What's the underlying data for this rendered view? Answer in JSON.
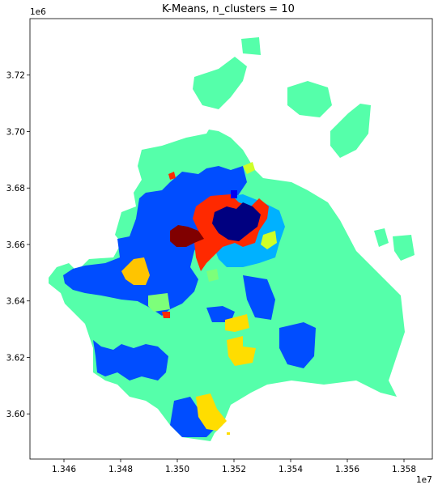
{
  "chart_data": {
    "type": "map",
    "title": "K-Means, n_clusters = 10",
    "x_offset_label": "1e7",
    "y_offset_label": "1e6",
    "xlim": [
      1.3448,
      1.359
    ],
    "ylim": [
      3.584,
      3.74
    ],
    "x_ticks": [
      "1.346",
      "1.348",
      "1.350",
      "1.352",
      "1.354",
      "1.356",
      "1.358"
    ],
    "y_ticks": [
      "3.60",
      "3.62",
      "3.64",
      "3.66",
      "3.68",
      "3.70",
      "3.72"
    ],
    "grid": false,
    "n_clusters": 10,
    "colormap": "jet",
    "cluster_colors": [
      "#000080",
      "#0000f1",
      "#004dff",
      "#00b1ff",
      "#29ffce",
      "#7dff7a",
      "#ceff29",
      "#ffc400",
      "#ff2900",
      "#800000"
    ]
  }
}
